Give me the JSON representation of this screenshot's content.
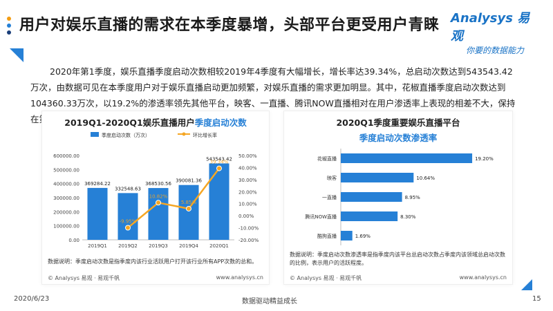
{
  "header": {
    "title": "用户对娱乐直播的需求在本季度暴增，头部平台更受用户青睐",
    "logo_top": "Analysys 易观",
    "logo_bottom": "你要的数据能力",
    "dot_colors": [
      "#f39c12",
      "#2680d6",
      "#1a3e7a"
    ]
  },
  "paragraph": "2020年第1季度，娱乐直播季度启动次数相较2019年4季度有大幅增长，增长率达39.34%，总启动次数达到543543.42万次，由数据可见在本季度用户对于娱乐直播启动更加频繁，对娱乐直播的需求更加明显。其中，花椒直播季度启动次数达到104360.33万次，以19.2%的渗透率领先其他平台，映客、一直播、腾讯NOW直播相对在用户渗透率上表现的相差不大，保持在第二梯队。",
  "chart_data": [
    {
      "type": "bar",
      "title_prefix": "2019Q1-2020Q1娱乐直播用户",
      "title_highlight": "季度启动次数",
      "categories": [
        "2019Q1",
        "2019Q2",
        "2019Q3",
        "2019Q4",
        "2020Q1"
      ],
      "series": [
        {
          "name": "季度启动次数（万次）",
          "type": "bar",
          "axis": "left",
          "values": [
            369284.22,
            332548.63,
            368530.56,
            390081.36,
            543543.42
          ],
          "labels": [
            "369284.22",
            "332548.63",
            "368530.56",
            "390081.36",
            "543543.42"
          ]
        },
        {
          "name": "环比增长率",
          "type": "line",
          "axis": "right",
          "values": [
            null,
            -9.95,
            10.82,
            5.85,
            39.34
          ],
          "labels": [
            "",
            "-9.95%",
            "10.82%",
            "5.85%",
            "39.34%"
          ]
        }
      ],
      "ylim": [
        0,
        600000
      ],
      "yticks": [
        "0.00",
        "100000.00",
        "200000.00",
        "300000.00",
        "400000.00",
        "500000.00",
        "600000.00"
      ],
      "y2lim": [
        -20,
        50
      ],
      "y2ticks": [
        "-20.00%",
        "-10.00%",
        "0.00%",
        "10.00%",
        "20.00%",
        "30.00%",
        "40.00%",
        "50.00%"
      ],
      "legend": "top",
      "note": "数据说明：季度启动次数是指季度内该行业活跃用户打开该行业所有APP次数的总和。",
      "source": "© Analysys 易观 · 易观千帆",
      "url": "www.analysys.cn",
      "bar_color": "#2680d6",
      "line_color": "#f5a623"
    },
    {
      "type": "bar",
      "orientation": "horizontal",
      "title_line1": "2020Q1季度重要娱乐直播平台",
      "title_line2": "季度启动次数渗透率",
      "categories": [
        "花椒直播",
        "映客",
        "一直播",
        "腾讯NOW直播",
        "酷狗直播"
      ],
      "values": [
        19.2,
        10.64,
        8.95,
        8.3,
        1.69
      ],
      "labels": [
        "19.20%",
        "10.64%",
        "8.95%",
        "8.30%",
        "1.69%"
      ],
      "xlim": [
        0,
        20
      ],
      "note": "数据说明：季度启动次数渗透率是指季度内该平台总启动次数占季度内该领域总启动次数的比例，表示用户的活跃程度。",
      "source": "© Analysys 易观 · 易观千帆",
      "url": "www.analysys.cn",
      "bar_color": "#2680d6"
    }
  ],
  "footer": {
    "date": "2020/6/23",
    "slogan": "数据驱动精益成长",
    "page": "15"
  }
}
